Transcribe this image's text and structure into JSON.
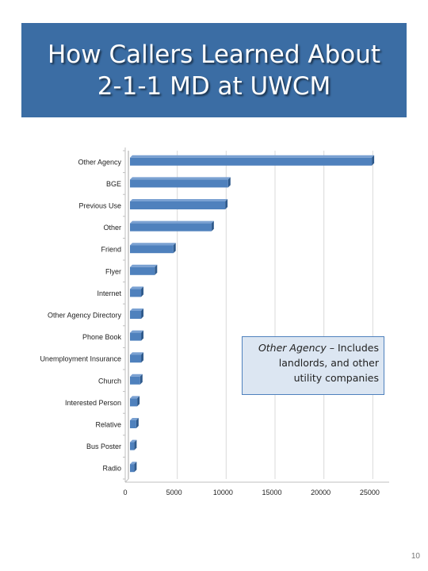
{
  "slide": {
    "title_line1": "How Callers Learned About",
    "title_line2": "2-1-1 MD at UWCM",
    "page_number": "10"
  },
  "callout": {
    "term": "Other Agency",
    "dash": " – Includes",
    "line2": "landlords, and other",
    "line3": "utility companies"
  },
  "colors": {
    "banner": "#3b6da4",
    "bar": "#4f81bd",
    "callout_fill": "#dce6f2"
  },
  "chart_data": {
    "type": "bar",
    "orientation": "horizontal",
    "categories": [
      "Other Agency",
      "BGE",
      "Previous Use",
      "Other",
      "Friend",
      "Flyer",
      "Internet",
      "Other Agency Directory",
      "Phone Book",
      "Unemployment Insurance",
      "Church",
      "Interested Person",
      "Relative",
      "Bus Poster",
      "Radio"
    ],
    "values": [
      24900,
      10200,
      9900,
      8500,
      4600,
      2700,
      1300,
      1300,
      1300,
      1300,
      1200,
      900,
      800,
      600,
      600
    ],
    "xticks": [
      "0",
      "5000",
      "10000",
      "15000",
      "20000",
      "25000"
    ],
    "xlim": [
      0,
      27000
    ],
    "grid": "vertical",
    "legend": "none"
  }
}
